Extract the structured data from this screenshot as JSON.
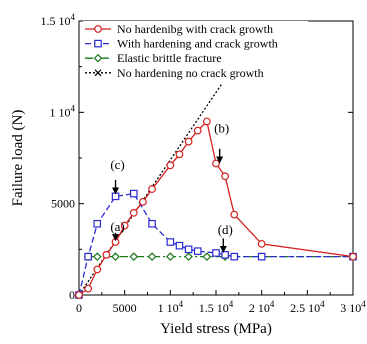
{
  "chart_data": {
    "type": "line",
    "xlabel": "Yield stress  (MPa)",
    "ylabel": "Failure load  (N)",
    "xlim": [
      0,
      30000
    ],
    "ylim": [
      0,
      15000
    ],
    "x_ticks": [
      {
        "value": 0,
        "label": "0"
      },
      {
        "value": 5000,
        "label": "5000"
      },
      {
        "value": 10000,
        "label": "1 10"
      },
      {
        "value": 15000,
        "label": "1.5 10"
      },
      {
        "value": 20000,
        "label": "2 10"
      },
      {
        "value": 25000,
        "label": "2.5 10"
      },
      {
        "value": 30000,
        "label": "3 10"
      }
    ],
    "y_ticks": [
      {
        "value": 0,
        "label": "0"
      },
      {
        "value": 5000,
        "label": "5000"
      },
      {
        "value": 10000,
        "label": "1 10"
      },
      {
        "value": 15000,
        "label": "1.5 10"
      }
    ],
    "tick_exponent": "4",
    "grid": false,
    "legend_position": "top-left",
    "series": [
      {
        "name": "No hardenibg with crack growth",
        "color": "#d42020",
        "marker": "circle",
        "dash": "solid",
        "points": [
          [
            0,
            0
          ],
          [
            1000,
            350
          ],
          [
            2000,
            1400
          ],
          [
            3000,
            2200
          ],
          [
            4000,
            2900
          ],
          [
            5000,
            3800
          ],
          [
            6000,
            4500
          ],
          [
            7000,
            5100
          ],
          [
            8000,
            5800
          ],
          [
            10000,
            7100
          ],
          [
            11000,
            7700
          ],
          [
            12000,
            8400
          ],
          [
            13000,
            9000
          ],
          [
            14000,
            9500
          ],
          [
            15000,
            7200
          ],
          [
            16000,
            6500
          ],
          [
            17000,
            4400
          ],
          [
            20000,
            2800
          ],
          [
            30000,
            2100
          ]
        ]
      },
      {
        "name": "With hardening and crack growth",
        "color": "#2a2ad0",
        "marker": "square",
        "dash": "dashed",
        "points": [
          [
            0,
            0
          ],
          [
            1000,
            2100
          ],
          [
            2000,
            3900
          ],
          [
            4000,
            5400
          ],
          [
            6000,
            5550
          ],
          [
            8000,
            3900
          ],
          [
            10000,
            2900
          ],
          [
            11000,
            2700
          ],
          [
            12000,
            2500
          ],
          [
            13000,
            2400
          ],
          [
            15000,
            2300
          ],
          [
            16000,
            2200
          ],
          [
            17000,
            2100
          ],
          [
            20000,
            2100
          ],
          [
            30000,
            2100
          ]
        ]
      },
      {
        "name": "Elastic brittle fracture",
        "color": "#1a7a1a",
        "marker": "diamond",
        "dash": "dashdot",
        "points": [
          [
            1000,
            2100
          ],
          [
            2000,
            2100
          ],
          [
            4000,
            2100
          ],
          [
            6000,
            2100
          ],
          [
            8000,
            2100
          ],
          [
            10000,
            2100
          ],
          [
            12000,
            2100
          ],
          [
            14000,
            2100
          ],
          [
            16000,
            2100
          ],
          [
            20000,
            2100
          ],
          [
            30000,
            2100
          ]
        ]
      },
      {
        "name": "No hardening no crack growth",
        "color": "#000000",
        "marker": "x",
        "dash": "dotted",
        "points": [
          [
            0,
            0
          ],
          [
            16500,
            12200
          ]
        ]
      }
    ],
    "annotations": [
      {
        "label": "(a)",
        "x": 4000,
        "y_text": 3500,
        "y_arrow_top": 3400,
        "y_arrow_tip": 2950
      },
      {
        "label": "(b)",
        "x": 15400,
        "y_text": 8900,
        "y_arrow_top": 8000,
        "y_arrow_tip": 7200
      },
      {
        "label": "(c)",
        "x": 4000,
        "y_text": 6900,
        "y_arrow_top": 6300,
        "y_arrow_tip": 5500
      },
      {
        "label": "(d)",
        "x": 15800,
        "y_text": 3350,
        "y_arrow_top": 3100,
        "y_arrow_tip": 2300
      }
    ]
  }
}
